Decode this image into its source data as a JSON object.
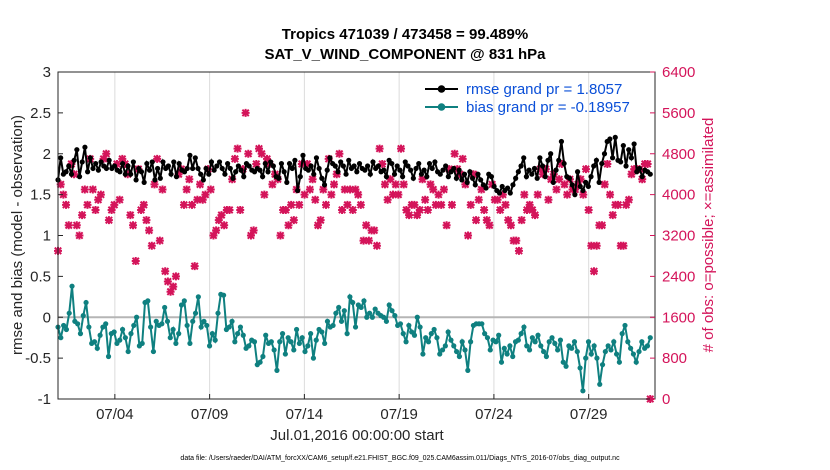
{
  "chart_data": {
    "type": "line",
    "title_lines": [
      "Tropics 471039 / 473458 = 99.489%",
      "SAT_V_WIND_COMPONENT @ 831 hPa"
    ],
    "xlabel": "Jul.01,2016 00:00:00 start",
    "ylabel_left": "rmse and bias (model - observation)",
    "ylabel_right": "# of obs: o=possible; ×=assimilated",
    "footer": "data file: /Users/raeder/DAI/ATM_forcXX/CAM6_setup/f.e21.FHIST_BGC.f09_025.CAM6assim.011/Diags_NTrS_2016-07/obs_diag_output.nc",
    "x_range": [
      1.0,
      32.5
    ],
    "x_ticks": [
      4,
      9,
      14,
      19,
      24,
      29
    ],
    "x_tick_labels": [
      "07/04",
      "07/09",
      "07/14",
      "07/19",
      "07/24",
      "07/29"
    ],
    "y_range": [
      -1,
      3
    ],
    "y_ticks": [
      -1,
      -0.5,
      0,
      0.5,
      1,
      1.5,
      2,
      2.5,
      3
    ],
    "y_tick_labels": [
      "-1",
      "-0.5",
      "0",
      "0.5",
      "1",
      "1.5",
      "2",
      "2.5",
      "3"
    ],
    "y2_range": [
      0,
      6400
    ],
    "y2_ticks": [
      0,
      800,
      1600,
      2400,
      3200,
      4000,
      4800,
      5600,
      6400
    ],
    "y2_tick_labels": [
      "0",
      "800",
      "1600",
      "2400",
      "3200",
      "4000",
      "4800",
      "5600",
      "6400"
    ],
    "x_grid": true,
    "legend_position": "top-right",
    "series": [
      {
        "name": "rmse grand pr = 1.8057",
        "color": "#000000",
        "axis": "left",
        "values": [
          1.68,
          1.95,
          1.75,
          1.78,
          1.85,
          1.75,
          1.92,
          2.05,
          1.72,
          1.9,
          2.08,
          1.78,
          1.95,
          1.82,
          1.88,
          1.8,
          1.9,
          1.85,
          1.82,
          1.92,
          1.82,
          1.85,
          1.8,
          1.78,
          1.88,
          1.75,
          1.85,
          1.75,
          1.9,
          1.68,
          1.82,
          1.78,
          1.65,
          1.88,
          1.8,
          1.9,
          1.68,
          1.82,
          1.7,
          1.9,
          1.82,
          1.85,
          1.75,
          1.9,
          1.72,
          1.88,
          1.8,
          1.78,
          1.82,
          1.98,
          1.82,
          1.95,
          1.82,
          1.75,
          1.68,
          1.82,
          1.75,
          1.9,
          1.8,
          1.85,
          1.9,
          1.82,
          1.75,
          1.88,
          1.82,
          1.7,
          1.78,
          1.85,
          1.8,
          1.72,
          1.88,
          1.85,
          1.8,
          1.78,
          1.82,
          1.8,
          1.72,
          1.88,
          1.78,
          1.9,
          1.85,
          1.72,
          1.7,
          1.88,
          1.78,
          1.65,
          1.88,
          1.82,
          1.92,
          1.55,
          1.72,
          1.98,
          1.82,
          1.8,
          1.85,
          1.75,
          1.95,
          1.82,
          1.7,
          1.62,
          1.8,
          1.95,
          1.88,
          1.85,
          1.78,
          1.9,
          1.85,
          1.75,
          1.92,
          1.82,
          1.85,
          1.78,
          1.88,
          1.82,
          1.8,
          1.85,
          1.75,
          1.9,
          1.82,
          1.85,
          1.78,
          1.8,
          1.72,
          1.92,
          1.88,
          1.75,
          1.85,
          1.8,
          1.72,
          1.9,
          1.85,
          1.8,
          1.7,
          1.82,
          1.88,
          1.75,
          1.8,
          1.72,
          1.88,
          1.82,
          1.9,
          1.78,
          1.75,
          1.8,
          1.85,
          1.72,
          1.78,
          1.82,
          1.7,
          1.8,
          1.68,
          1.75,
          1.65,
          1.78,
          1.7,
          1.62,
          1.75,
          1.68,
          1.62,
          1.58,
          1.75,
          1.72,
          1.6,
          1.55,
          1.52,
          1.6,
          1.55,
          1.58,
          1.52,
          1.62,
          1.7,
          1.78,
          1.85,
          1.95,
          1.72,
          1.8,
          1.75,
          1.82,
          1.7,
          1.95,
          1.85,
          1.72,
          1.92,
          2.0,
          1.65,
          1.8,
          1.92,
          2.15,
          1.88,
          1.72,
          1.7,
          1.62,
          1.5,
          1.78,
          1.6,
          1.55,
          1.65,
          1.6,
          1.72,
          1.85,
          1.92,
          1.65,
          1.88,
          2.0,
          2.15,
          2.18,
          1.95,
          2.2,
          1.92,
          1.9,
          2.1,
          1.85,
          2.05,
          1.95,
          2.12,
          1.78,
          1.82,
          1.72,
          1.8,
          1.78,
          1.75
        ]
      },
      {
        "name": "bias grand pr = -0.18957",
        "color": "#0f8080",
        "axis": "left",
        "values": [
          -0.12,
          -0.25,
          -0.1,
          -0.15,
          0.05,
          0.38,
          -0.05,
          -0.08,
          -0.2,
          0.02,
          0.18,
          -0.12,
          -0.32,
          -0.3,
          -0.38,
          -0.22,
          -0.12,
          -0.08,
          -0.48,
          -0.2,
          -0.18,
          -0.32,
          -0.28,
          -0.15,
          -0.25,
          -0.42,
          -0.2,
          -0.1,
          0.0,
          -0.35,
          -0.32,
          0.18,
          0.2,
          -0.12,
          -0.42,
          -0.05,
          -0.1,
          -0.08,
          0.12,
          -0.05,
          -0.25,
          -0.15,
          -0.32,
          -0.2,
          0.15,
          0.2,
          -0.1,
          -0.32,
          -0.05,
          0.05,
          0.25,
          -0.12,
          -0.05,
          -0.1,
          -0.35,
          -0.2,
          -0.28,
          0.05,
          0.28,
          0.27,
          -0.15,
          -0.12,
          -0.05,
          -0.3,
          -0.2,
          -0.12,
          -0.22,
          -0.38,
          -0.35,
          -0.28,
          -0.3,
          -0.58,
          -0.55,
          -0.48,
          -0.22,
          -0.32,
          -0.3,
          -0.4,
          -0.65,
          -0.3,
          -0.2,
          -0.45,
          -0.25,
          -0.3,
          -0.4,
          -0.15,
          -0.32,
          -0.25,
          -0.42,
          -0.35,
          -0.2,
          -0.5,
          -0.28,
          -0.15,
          -0.18,
          -0.32,
          -0.05,
          -0.12,
          -0.1,
          0.05,
          0.12,
          -0.05,
          0.08,
          -0.2,
          0.25,
          0.18,
          -0.12,
          0.15,
          0.12,
          0.2,
          0.0,
          0.05,
          0.0,
          0.1,
          0.05,
          0.02,
          0.0,
          -0.05,
          0.15,
          0.08,
          0.02,
          -0.1,
          -0.08,
          -0.2,
          -0.3,
          -0.1,
          -0.18,
          -0.22,
          0.0,
          -0.12,
          -0.45,
          -0.25,
          -0.3,
          -0.2,
          -0.15,
          -0.25,
          -0.45,
          -0.4,
          -0.35,
          -0.18,
          -0.28,
          -0.35,
          -0.42,
          -0.48,
          -0.3,
          -0.4,
          -0.65,
          -0.3,
          -0.1,
          -0.08,
          -0.08,
          -0.08,
          -0.2,
          -0.25,
          -0.4,
          -0.28,
          -0.3,
          -0.22,
          -0.55,
          -0.38,
          -0.45,
          -0.35,
          -0.48,
          -0.3,
          -0.28,
          -0.2,
          -0.12,
          -0.35,
          -0.4,
          -0.25,
          -0.3,
          -0.22,
          -0.35,
          -0.42,
          -0.48,
          -0.3,
          -0.25,
          -0.32,
          -0.4,
          -0.28,
          -0.55,
          -0.6,
          -0.35,
          -0.38,
          -0.3,
          -0.42,
          -0.62,
          -0.9,
          -0.5,
          -0.3,
          -0.45,
          -0.35,
          -0.5,
          -0.82,
          -0.58,
          -0.42,
          -0.35,
          -0.4,
          -0.3,
          -0.45,
          -0.55,
          -0.2,
          -0.1,
          -0.3,
          -0.38,
          -0.45,
          -0.55,
          -0.42,
          -0.3,
          -0.38,
          -0.35,
          -0.25
        ]
      },
      {
        "name": "assimilated",
        "color": "#d4145a",
        "axis": "right",
        "marker": "x",
        "values": [
          2900,
          4200,
          4000,
          3800,
          3400,
          4600,
          4400,
          3400,
          3200,
          3600,
          4100,
          3800,
          4700,
          4100,
          3700,
          3900,
          4000,
          4700,
          4800,
          3500,
          3700,
          3800,
          4600,
          3900,
          4700,
          4600,
          4400,
          3600,
          3400,
          2700,
          4500,
          3700,
          3800,
          3500,
          3300,
          3000,
          4200,
          4700,
          3100,
          4100,
          2500,
          2300,
          2100,
          2200,
          2400,
          4400,
          4500,
          3800,
          4100,
          4300,
          3800,
          2600,
          3900,
          4200,
          3900,
          4000,
          4500,
          4100,
          3200,
          3300,
          3500,
          3600,
          3400,
          3700,
          3700,
          4300,
          4700,
          4900,
          3700,
          4500,
          5600,
          4800,
          3200,
          3300,
          4600,
          4900,
          4800,
          4000,
          4700,
          4600,
          4200,
          4400,
          4300,
          3200,
          3700,
          3700,
          3400,
          3800,
          3500,
          4100,
          3800,
          4600,
          4000,
          4600,
          4100,
          4300,
          3900,
          3400,
          3500,
          4100,
          3800,
          4700,
          4000,
          4200,
          4400,
          4800,
          3700,
          4100,
          3800,
          4100,
          3700,
          4100,
          4000,
          3800,
          3100,
          3400,
          3100,
          3300,
          3300,
          3000,
          4900,
          4600,
          4200,
          3900,
          4300,
          4000,
          4200,
          4000,
          4900,
          4200,
          3700,
          3600,
          3800,
          3800,
          3600,
          3700,
          4300,
          3900,
          3700,
          4200,
          4100,
          3800,
          4000,
          3800,
          4100,
          3400,
          4500,
          3800,
          4800,
          4500,
          4400,
          4700,
          4200,
          3200,
          3800,
          4400,
          3500,
          3900,
          4100,
          3700,
          3500,
          3400,
          4200,
          3900,
          3900,
          3700,
          4000,
          3800,
          3500,
          3400,
          3100,
          3100,
          2900,
          3500,
          4000,
          3700,
          3800,
          3700,
          3600,
          4000,
          4500,
          4400,
          4500,
          3900,
          4300,
          4400,
          4100,
          4300,
          4600,
          4200,
          4000,
          4300,
          4100,
          4100,
          4200,
          4300,
          4000,
          4500,
          3700,
          3000,
          2500,
          3000,
          3400,
          3400,
          4200,
          4600,
          4000,
          3600,
          3800,
          3800,
          3000,
          3000,
          3800,
          3900,
          4400,
          4500,
          4500,
          4500,
          4300,
          4600,
          4600,
          0
        ],
        "assimilated_values_note": ""
      }
    ],
    "zero_line": 0
  }
}
